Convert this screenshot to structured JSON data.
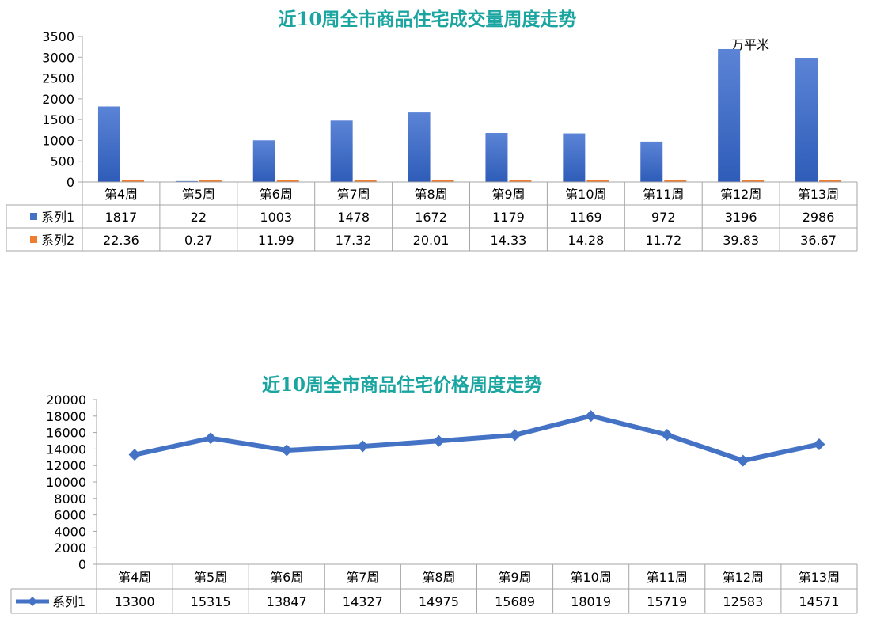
{
  "colors": {
    "title": "#1aa5a0",
    "series1": "#4472c4",
    "series2": "#ed7d31",
    "grid": "#a6a6a6"
  },
  "chart_data": [
    {
      "type": "bar",
      "title": "近10周全市商品住宅成交量周度走势",
      "unit_label": "万平米",
      "categories": [
        "第4周",
        "第5周",
        "第6周",
        "第7周",
        "第8周",
        "第9周",
        "第10周",
        "第11周",
        "第12周",
        "第13周"
      ],
      "series": [
        {
          "name": "系列1",
          "values": [
            1817,
            22,
            1003,
            1478,
            1672,
            1179,
            1169,
            972,
            3196,
            2986
          ]
        },
        {
          "name": "系列2",
          "values": [
            22.36,
            0.27,
            11.99,
            17.32,
            20.01,
            14.33,
            14.28,
            11.72,
            39.83,
            36.67
          ]
        }
      ],
      "table_text": [
        [
          "1817",
          "22",
          "1003",
          "1478",
          "1672",
          "1179",
          "1169",
          "972",
          "3196",
          "2986"
        ],
        [
          "22.36",
          "0.27",
          "11.99",
          "17.32",
          "20.01",
          "14.33",
          "14.28",
          "11.72",
          "39.83",
          "36.67"
        ]
      ],
      "ylim": [
        0,
        3500
      ],
      "yticks": [
        "0",
        "500",
        "1000",
        "1500",
        "2000",
        "2500",
        "3000",
        "3500"
      ],
      "legend": "data-table"
    },
    {
      "type": "line",
      "title": "近10周全市商品住宅价格周度走势",
      "categories": [
        "第4周",
        "第5周",
        "第6周",
        "第7周",
        "第8周",
        "第9周",
        "第10周",
        "第11周",
        "第12周",
        "第13周"
      ],
      "series": [
        {
          "name": "系列1",
          "values": [
            13300,
            15315,
            13847,
            14327,
            14975,
            15689,
            18019,
            15719,
            12583,
            14571
          ]
        }
      ],
      "ylim": [
        0,
        20000
      ],
      "yticks": [
        "0",
        "2000",
        "4000",
        "6000",
        "8000",
        "10000",
        "12000",
        "14000",
        "16000",
        "18000",
        "20000"
      ],
      "legend": "data-table"
    }
  ]
}
